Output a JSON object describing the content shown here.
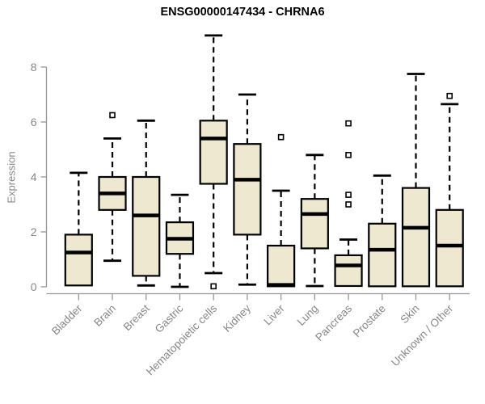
{
  "chart_data": {
    "type": "boxplot",
    "title": "ENSG00000147434 - CHRNA6",
    "ylabel": "Expression",
    "xlabel": "",
    "ylim": [
      0,
      8
    ],
    "yticks": [
      0,
      2,
      4,
      6,
      8
    ],
    "grid": false,
    "legend": "none",
    "colors": {
      "box_fill": "#EDE8CF",
      "box_stroke": "#000000",
      "axis_line": "#969696",
      "axis_text": "#878787",
      "title_text": "#000000",
      "outlier_fill": "#ffffff"
    },
    "categories": [
      "Bladder",
      "Brain",
      "Breast",
      "Gastric",
      "Hematopoietic cells",
      "Kidney",
      "Liver",
      "Lung",
      "Pancreas",
      "Prostate",
      "Skin",
      "Unknown / Other"
    ],
    "boxes": [
      {
        "name": "Bladder",
        "whisker_low": 0.05,
        "q1": 0.05,
        "median": 1.25,
        "q3": 1.9,
        "whisker_high": 4.15,
        "outliers": []
      },
      {
        "name": "Brain",
        "whisker_low": 0.95,
        "q1": 2.8,
        "median": 3.4,
        "q3": 4.0,
        "whisker_high": 5.4,
        "outliers": [
          6.25
        ]
      },
      {
        "name": "Breast",
        "whisker_low": 0.05,
        "q1": 0.4,
        "median": 2.6,
        "q3": 4.0,
        "whisker_high": 6.05,
        "outliers": []
      },
      {
        "name": "Gastric",
        "whisker_low": 0.0,
        "q1": 1.2,
        "median": 1.75,
        "q3": 2.35,
        "whisker_high": 3.35,
        "outliers": []
      },
      {
        "name": "Hematopoietic cells",
        "whisker_low": 0.5,
        "q1": 3.75,
        "median": 5.4,
        "q3": 6.05,
        "whisker_high": 9.15,
        "outliers": [
          0.02
        ]
      },
      {
        "name": "Kidney",
        "whisker_low": 0.08,
        "q1": 1.9,
        "median": 3.9,
        "q3": 5.2,
        "whisker_high": 7.0,
        "outliers": []
      },
      {
        "name": "Liver",
        "whisker_low": 0.02,
        "q1": 0.02,
        "median": 0.07,
        "q3": 1.5,
        "whisker_high": 3.5,
        "outliers": [
          5.45
        ]
      },
      {
        "name": "Lung",
        "whisker_low": 0.03,
        "q1": 1.4,
        "median": 2.65,
        "q3": 3.2,
        "whisker_high": 4.8,
        "outliers": []
      },
      {
        "name": "Pancreas",
        "whisker_low": 0.03,
        "q1": 0.03,
        "median": 0.78,
        "q3": 1.15,
        "whisker_high": 1.72,
        "outliers": [
          3.0,
          3.35,
          4.8,
          5.95
        ]
      },
      {
        "name": "Prostate",
        "whisker_low": 0.02,
        "q1": 0.02,
        "median": 1.35,
        "q3": 2.3,
        "whisker_high": 4.05,
        "outliers": []
      },
      {
        "name": "Skin",
        "whisker_low": 0.02,
        "q1": 0.02,
        "median": 2.15,
        "q3": 3.6,
        "whisker_high": 7.75,
        "outliers": []
      },
      {
        "name": "Unknown / Other",
        "whisker_low": 0.02,
        "q1": 0.02,
        "median": 1.5,
        "q3": 2.8,
        "whisker_high": 6.65,
        "outliers": [
          6.95
        ]
      }
    ]
  }
}
